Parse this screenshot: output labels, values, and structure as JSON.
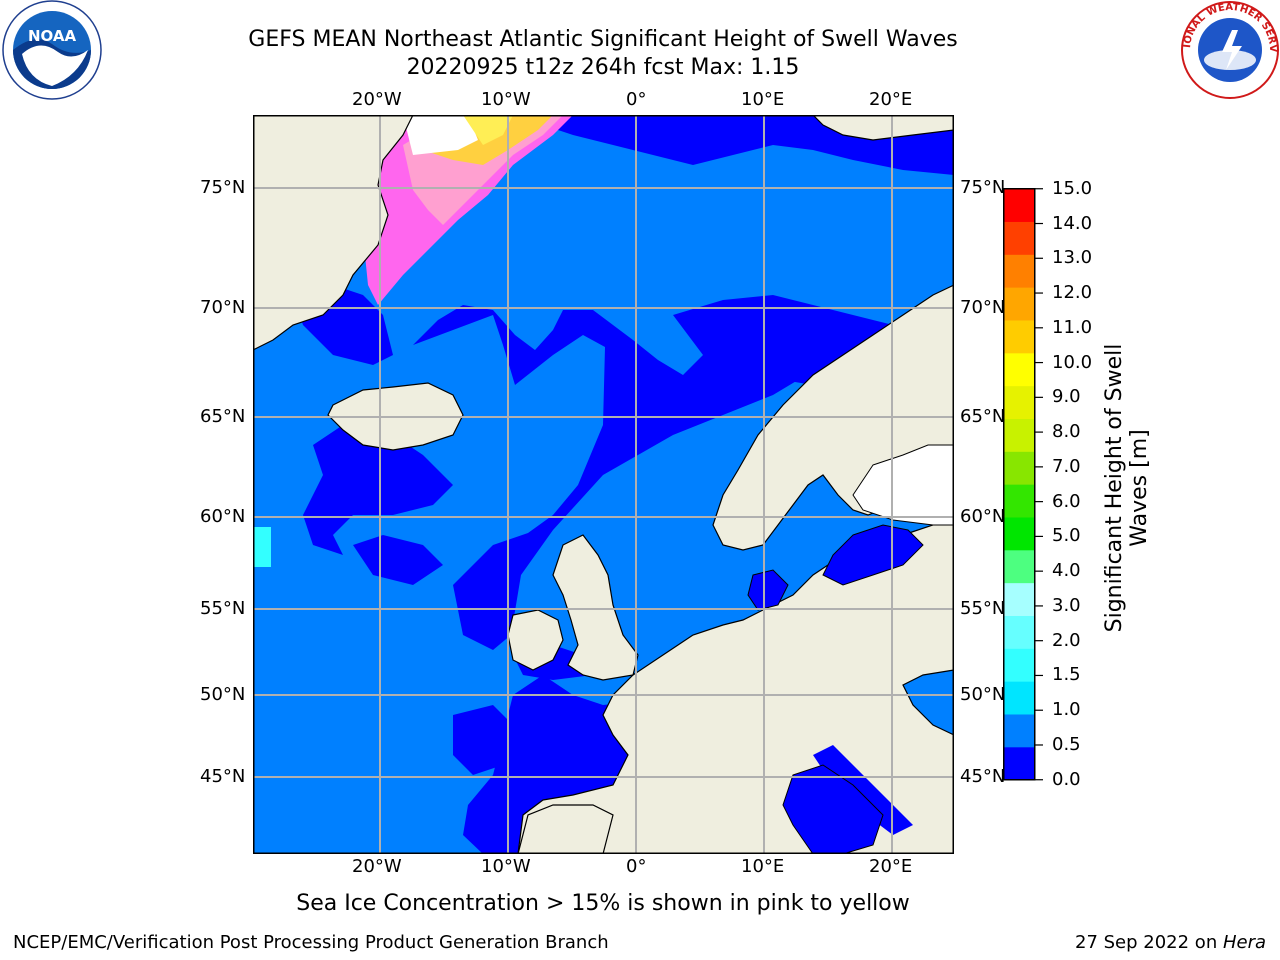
{
  "title_line1": "GEFS MEAN Northeast Atlantic Significant Height of Swell Waves",
  "title_line2": "20220925 t12z 264h fcst   Max: 1.15",
  "caption": "Sea Ice Concentration > 15% is shown in pink to yellow",
  "footer_left": "NCEP/EMC/Verification Post Processing Product Generation Branch",
  "footer_right_date": "27 Sep 2022 on ",
  "footer_right_machine": "Hera",
  "logos": {
    "left": "NOAA",
    "right": "NATIONAL WEATHER SERVICE"
  },
  "map": {
    "lon_labels": [
      "20°W",
      "10°W",
      "0°",
      "10°E",
      "20°E"
    ],
    "lat_labels": [
      "75°N",
      "70°N",
      "65°N",
      "60°N",
      "55°N",
      "50°N",
      "45°N"
    ],
    "colors": {
      "land": "#efeedf",
      "grid": "#b0b0b0",
      "ice_white": "#ffffff"
    }
  },
  "colorbar": {
    "title_line1": "Significant Height of Swell",
    "title_line2": "Waves [m]",
    "ticks": [
      "15.0",
      "14.0",
      "13.0",
      "12.0",
      "11.0",
      "10.0",
      "9.0",
      "8.0",
      "7.0",
      "6.0",
      "5.0",
      "4.0",
      "3.0",
      "2.0",
      "1.5",
      "1.0",
      "0.5",
      "0.0"
    ],
    "colors_bottom_to_top": [
      "#0000ff",
      "#0080ff",
      "#00e5ff",
      "#33ffff",
      "#66ffff",
      "#a6ffff",
      "#4dff80",
      "#00e600",
      "#33e600",
      "#88e600",
      "#c8f200",
      "#e6f200",
      "#ffff00",
      "#ffcc00",
      "#ffa600",
      "#ff8000",
      "#ff4000",
      "#ff0000"
    ]
  }
}
